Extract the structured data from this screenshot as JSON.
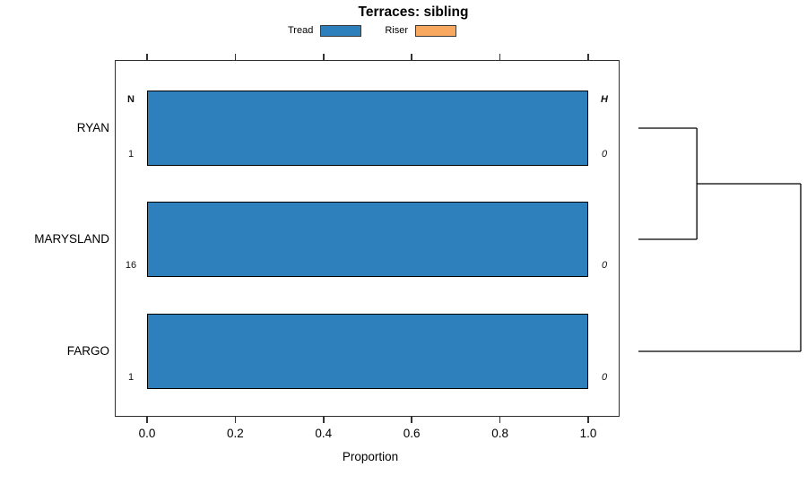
{
  "chart_data": {
    "type": "bar",
    "orientation": "horizontal",
    "title": "Terraces: sibling",
    "xlabel": "Proportion",
    "xlim": [
      0,
      1.07
    ],
    "x_ticks": [
      "0.0",
      "0.2",
      "0.4",
      "0.6",
      "0.8",
      "1.0"
    ],
    "grid": false,
    "categories": [
      "RYAN",
      "MARYSLAND",
      "FARGO"
    ],
    "series": [
      {
        "name": "Tread",
        "color": "#2E80BC",
        "values": [
          1.0,
          1.0,
          1.0
        ]
      },
      {
        "name": "Riser",
        "color": "#F9A85F",
        "values": [
          0.0,
          0.0,
          0.0
        ]
      }
    ],
    "annotation_columns": {
      "left": {
        "header": "N",
        "values": [
          "1",
          "16",
          "1"
        ]
      },
      "right": {
        "header": "H",
        "values": [
          "0",
          "0",
          "0"
        ]
      }
    },
    "legend": {
      "position": "top",
      "entries": [
        {
          "label": "Tread",
          "color": "#2E80BC"
        },
        {
          "label": "Riser",
          "color": "#F9A85F"
        }
      ]
    },
    "dendrogram": {
      "leaves": [
        "RYAN",
        "MARYSLAND",
        "FARGO"
      ],
      "merges": [
        {
          "members": [
            {
              "leaf": 0
            },
            {
              "leaf": 1
            }
          ],
          "height": 0.36
        },
        {
          "members": [
            {
              "merge": 0
            },
            {
              "leaf": 2
            }
          ],
          "height": 1.0
        }
      ]
    }
  }
}
